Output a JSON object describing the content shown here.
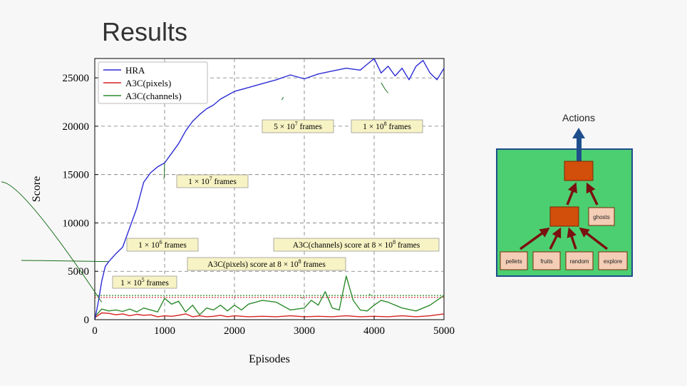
{
  "slide": {
    "title": "Results"
  },
  "chart_data": {
    "type": "line",
    "xlabel": "Episodes",
    "ylabel": "Score",
    "xlim": [
      0,
      5000
    ],
    "ylim": [
      0,
      27000
    ],
    "x_ticks": [
      "0",
      "1000",
      "2000",
      "3000",
      "4000",
      "5000"
    ],
    "y_ticks": [
      "0",
      "5000",
      "10000",
      "15000",
      "20000",
      "25000"
    ],
    "grid": true,
    "legend_position": "top-left",
    "series": [
      {
        "name": "HRA",
        "color": "#2b2bd6",
        "x": [
          0,
          50,
          100,
          150,
          200,
          300,
          400,
          500,
          600,
          700,
          800,
          900,
          1000,
          1100,
          1200,
          1300,
          1400,
          1500,
          1600,
          1700,
          1800,
          1900,
          2000,
          2200,
          2400,
          2600,
          2800,
          3000,
          3200,
          3400,
          3600,
          3800,
          4000,
          4100,
          4200,
          4300,
          4400,
          4500,
          4600,
          4700,
          4800,
          4900,
          5000
        ],
        "y": [
          0,
          1800,
          4000,
          5500,
          6000,
          6800,
          7500,
          9500,
          11500,
          14200,
          15200,
          15800,
          16200,
          17200,
          18200,
          19500,
          20500,
          21200,
          21800,
          22200,
          22800,
          23200,
          23600,
          24000,
          24400,
          24800,
          25300,
          24900,
          25400,
          25700,
          26000,
          25800,
          27000,
          25500,
          26200,
          25200,
          26000,
          24800,
          26200,
          26800,
          25500,
          24800,
          26000
        ]
      },
      {
        "name": "A3C(pixels)",
        "color": "#d62020",
        "x": [
          0,
          100,
          200,
          300,
          400,
          500,
          600,
          700,
          800,
          900,
          1000,
          1100,
          1200,
          1300,
          1400,
          1500,
          1600,
          1700,
          1800,
          1900,
          2000,
          2200,
          2400,
          2600,
          2800,
          3000,
          3200,
          3400,
          3600,
          3800,
          4000,
          4200,
          4400,
          4600,
          4800,
          5000
        ],
        "y": [
          200,
          700,
          650,
          500,
          600,
          400,
          550,
          450,
          500,
          300,
          400,
          350,
          450,
          600,
          300,
          400,
          300,
          350,
          450,
          300,
          400,
          300,
          350,
          300,
          400,
          300,
          350,
          300,
          400,
          300,
          350,
          300,
          400,
          300,
          400,
          600
        ]
      },
      {
        "name": "A3C(channels)",
        "color": "#2e8b2e",
        "x": [
          0,
          100,
          200,
          300,
          400,
          500,
          600,
          700,
          800,
          900,
          1000,
          1100,
          1200,
          1300,
          1400,
          1500,
          1600,
          1700,
          1800,
          1900,
          2000,
          2100,
          2200,
          2400,
          2600,
          2800,
          3000,
          3100,
          3200,
          3300,
          3400,
          3500,
          3600,
          3700,
          3800,
          3900,
          4000,
          4100,
          4200,
          4400,
          4600,
          4800,
          5000
        ],
        "y": [
          300,
          1100,
          900,
          1000,
          850,
          1100,
          800,
          1200,
          1000,
          800,
          2200,
          1600,
          1900,
          800,
          1500,
          500,
          1200,
          1000,
          1500,
          900,
          1500,
          1000,
          1600,
          2000,
          1800,
          1000,
          1200,
          2000,
          1500,
          2900,
          1200,
          1000,
          4500,
          2000,
          1000,
          900,
          1500,
          2000,
          1800,
          1200,
          900,
          1500,
          2500
        ]
      }
    ],
    "reference_lines": [
      {
        "y": 2500,
        "color": "#2e8b2e",
        "style": "dotted"
      },
      {
        "y": 2300,
        "color": "#d62020",
        "style": "dotted"
      }
    ],
    "annotations": [
      {
        "text": "1 × 10^5 frames",
        "x": 100,
        "y": 1800
      },
      {
        "text": "1 × 10^6 frames",
        "x": 200,
        "y": 6000
      },
      {
        "text": "1 × 10^7 frames",
        "x": 1000,
        "y": 16200
      },
      {
        "text": "5 × 10^7 frames",
        "x": 2700,
        "y": 23000
      },
      {
        "text": "1 × 10^8 frames",
        "x": 4100,
        "y": 24500
      },
      {
        "text": "A3C(channels) score at 8 × 10^8 frames",
        "x": 3950,
        "y": 2500
      },
      {
        "text": "A3C(pixels) score at 8 × 10^8 frames",
        "x": 2950,
        "y": 2300
      }
    ]
  },
  "diagram": {
    "actions_label": "Actions",
    "ghosts_label": "ghosts",
    "inputs": [
      "pellets",
      "fruits",
      "random",
      "explore"
    ]
  },
  "colors": {
    "background": "#f7f7f7",
    "annotation_fill": "#f7f3c4",
    "diagram_bg": "#4ccf70",
    "node_fill": "#d24e0b",
    "box_fill": "#f4cdb6",
    "arrow_up": "#1f4e8c",
    "arrow_dark": "#7a1010"
  }
}
